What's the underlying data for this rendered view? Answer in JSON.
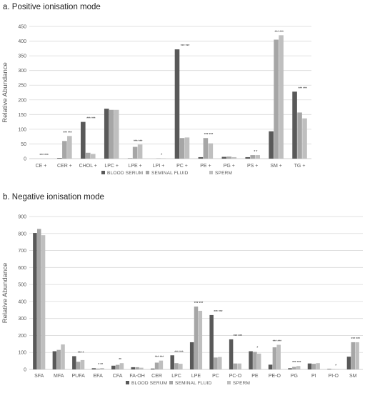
{
  "chart_data": [
    {
      "type": "bar",
      "title": "a. Positive ionisation mode",
      "ylabel": "Relative Abundance",
      "ylim": [
        0,
        450
      ],
      "yticks": [
        0,
        50,
        100,
        150,
        200,
        250,
        300,
        350,
        400,
        450
      ],
      "grid": true,
      "legend_position": "bottom",
      "categories": [
        "CE +",
        "CER +",
        "CHOL +",
        "LPC +",
        "LPE +",
        "LPI +",
        "PC +",
        "PE +",
        "PG +",
        "PS +",
        "SM +",
        "TG +"
      ],
      "series": [
        {
          "name": "BLOOD SERUM",
          "color": "#595959",
          "values": [
            0,
            2,
            125,
            170,
            1,
            0,
            372,
            5,
            6,
            5,
            93,
            228
          ]
        },
        {
          "name": "SEMINAL FLUID",
          "color": "#a6a6a6",
          "values": [
            0,
            60,
            20,
            166,
            40,
            1,
            70,
            70,
            7,
            12,
            405,
            157
          ]
        },
        {
          "name": "SPERM",
          "color": "#bfbfbf",
          "values": [
            0,
            77,
            16,
            166,
            48,
            1,
            72,
            52,
            5,
            12,
            420,
            137
          ]
        }
      ],
      "annotations": [
        "*** ***",
        "*** ***",
        "*** ***",
        "",
        "*** ***",
        "*",
        "*** ***",
        "*** ***",
        "",
        "*   *",
        "*** ***",
        "*** ***"
      ]
    },
    {
      "type": "bar",
      "title": "b. Negative ionisation mode",
      "ylabel": "Relative Abundance",
      "ylim": [
        0,
        900
      ],
      "yticks": [
        0,
        100,
        200,
        300,
        400,
        500,
        600,
        700,
        800,
        900
      ],
      "grid": true,
      "legend_position": "bottom",
      "categories": [
        "SFA",
        "MFA",
        "PUFA",
        "EFA",
        "CFA",
        "FA-OH",
        "CER",
        "LPC",
        "LPE",
        "PC",
        "PC-O",
        "PE",
        "PE-O",
        "PG",
        "PI",
        "PI-O",
        "SM"
      ],
      "series": [
        {
          "name": "BLOOD SERUM",
          "color": "#595959",
          "values": [
            803,
            107,
            78,
            7,
            22,
            13,
            5,
            83,
            160,
            320,
            177,
            107,
            28,
            7,
            35,
            3,
            75
          ]
        },
        {
          "name": "SEMINAL FLUID",
          "color": "#a6a6a6",
          "values": [
            827,
            115,
            45,
            5,
            27,
            13,
            40,
            37,
            370,
            70,
            35,
            103,
            130,
            15,
            33,
            2,
            160
          ]
        },
        {
          "name": "SPERM",
          "color": "#bfbfbf",
          "values": [
            790,
            147,
            55,
            8,
            37,
            10,
            52,
            33,
            345,
            73,
            35,
            93,
            145,
            20,
            37,
            2,
            160
          ]
        }
      ],
      "annotations": [
        "",
        "",
        "*** *",
        "*  **",
        "**",
        "",
        "*** ***",
        "*** ***",
        "*** ***",
        "*** ***",
        "*** ***",
        "*",
        "*** ***",
        "*** ***",
        "",
        "*",
        "*** ***"
      ]
    }
  ]
}
